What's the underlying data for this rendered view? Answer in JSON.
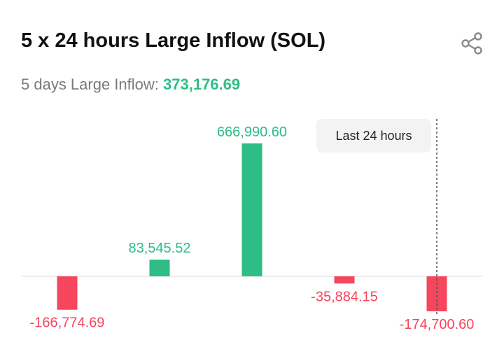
{
  "header": {
    "title": "5 x 24 hours Large Inflow (SOL)",
    "share_icon": "share-icon"
  },
  "summary": {
    "label": "5 days Large Inflow: ",
    "value": "373,176.69"
  },
  "tooltip": {
    "label": "Last 24 hours"
  },
  "colors": {
    "positive": "#2dbd85",
    "negative": "#f6465d",
    "baseline": "#e6e6e6",
    "crosshair": "#555555"
  },
  "chart_data": {
    "type": "bar",
    "categories": [
      "",
      "",
      "",
      "",
      ""
    ],
    "values": [
      -166774.69,
      83545.52,
      666990.6,
      -35884.15,
      -174700.6
    ],
    "labels": [
      "-166,774.69",
      "83,545.52",
      "666,990.60",
      "-35,884.15",
      "-174,700.60"
    ],
    "ylim": [
      -174700.6,
      666990.6
    ],
    "grid": false,
    "legend": "none",
    "highlight_index": 4
  }
}
